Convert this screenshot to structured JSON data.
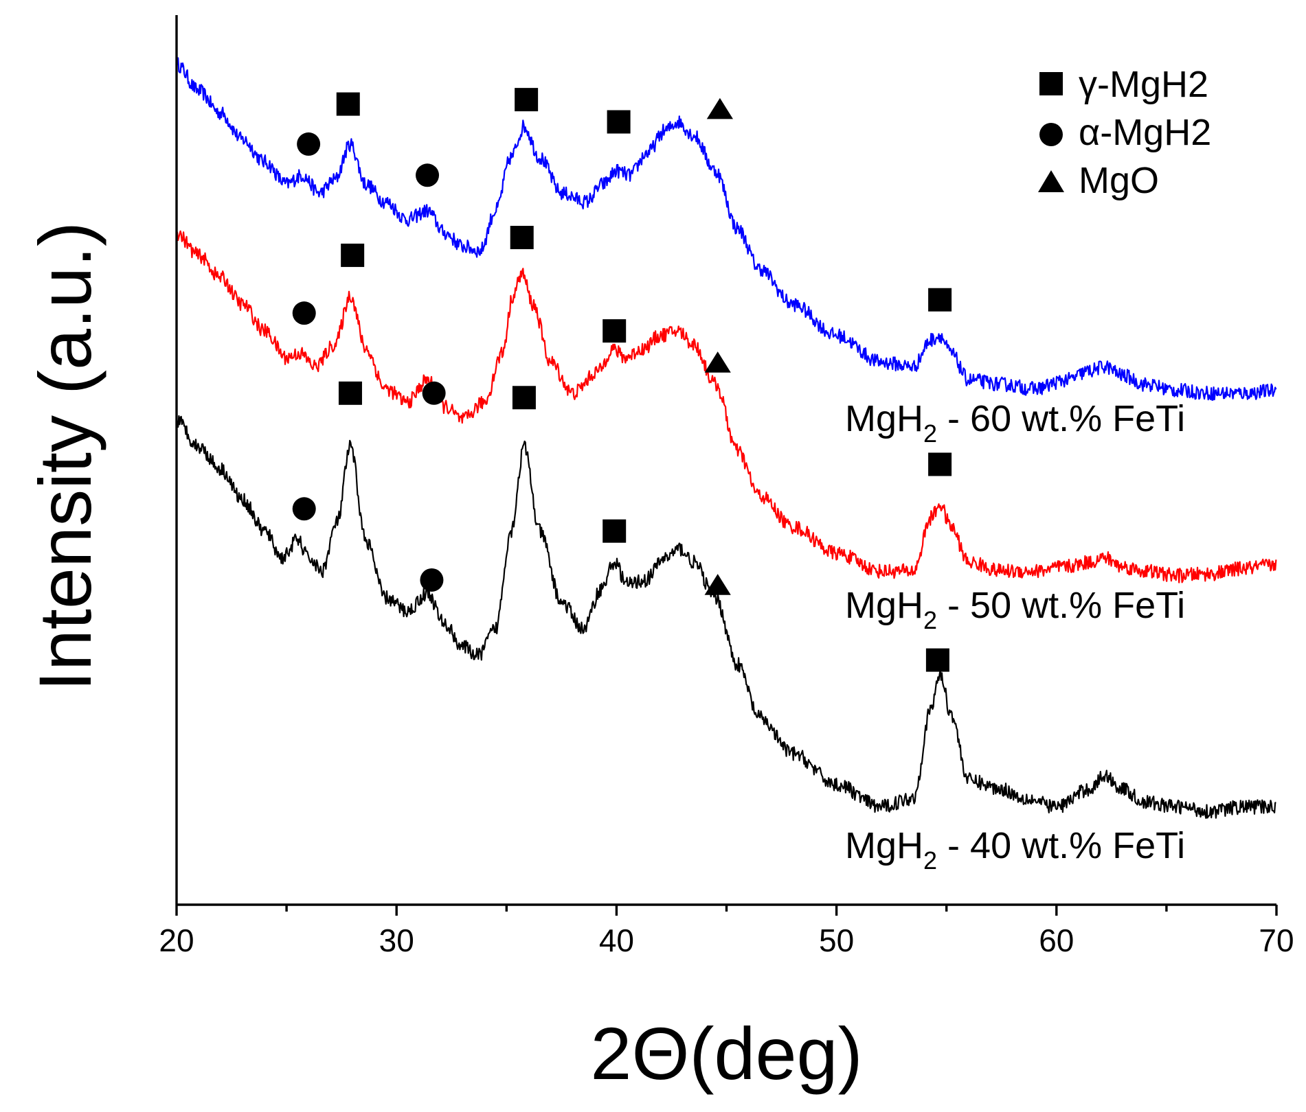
{
  "chart_data": {
    "type": "line",
    "title": "",
    "xlabel": "2Θ(deg)",
    "ylabel": "Intensity (a.u.)",
    "xlim": [
      20,
      70
    ],
    "x_ticks": [
      20,
      30,
      40,
      50,
      60,
      70
    ],
    "y_ticks": [],
    "grid": false,
    "legend_position": "top-right",
    "legend": [
      {
        "symbol": "square",
        "label": "γ-MgH2"
      },
      {
        "symbol": "circle",
        "label": "α-MgH2"
      },
      {
        "symbol": "triangle",
        "label": "MgO"
      }
    ],
    "series": [
      {
        "name": "MgH2 - 60 wt.% FeTi",
        "label_main": "MgH",
        "label_sub": "2",
        "label_rest": " - 60 wt.% FeTi",
        "color": "#0000ff",
        "x": [
          20,
          21,
          22,
          23,
          24,
          25,
          25.7,
          26.5,
          27.2,
          27.9,
          28.6,
          29.5,
          30.5,
          31.4,
          32.2,
          33,
          33.8,
          34.5,
          35.2,
          35.8,
          36.5,
          37.5,
          38.6,
          39.4,
          40,
          40.6,
          41.4,
          42.2,
          42.8,
          43.5,
          44.5,
          45.5,
          46.5,
          48,
          50,
          52,
          53.5,
          54.3,
          54.7,
          55.2,
          56,
          57.5,
          59,
          60.5,
          61.5,
          62.2,
          63,
          64,
          65.5,
          67,
          68.5,
          70
        ],
        "y": [
          0.945,
          0.915,
          0.89,
          0.86,
          0.835,
          0.81,
          0.82,
          0.8,
          0.815,
          0.855,
          0.81,
          0.79,
          0.77,
          0.78,
          0.755,
          0.74,
          0.735,
          0.78,
          0.84,
          0.875,
          0.84,
          0.8,
          0.79,
          0.81,
          0.825,
          0.82,
          0.845,
          0.87,
          0.88,
          0.865,
          0.825,
          0.76,
          0.715,
          0.675,
          0.64,
          0.61,
          0.605,
          0.635,
          0.64,
          0.62,
          0.59,
          0.585,
          0.58,
          0.59,
          0.6,
          0.605,
          0.595,
          0.585,
          0.578,
          0.575,
          0.575,
          0.578
        ]
      },
      {
        "name": "MgH2 - 50 wt.% FeTi",
        "label_main": "MgH",
        "label_sub": "2",
        "label_rest": " - 50 wt.% FeTi",
        "color": "#ff0000",
        "x": [
          20,
          21,
          22,
          23,
          24,
          25,
          25.6,
          26.3,
          27.2,
          27.9,
          28.6,
          29.5,
          30.5,
          31.4,
          32.2,
          33,
          34,
          34.8,
          35.3,
          35.7,
          36.2,
          37,
          38,
          39.2,
          39.8,
          40.4,
          41.2,
          42,
          42.8,
          43.5,
          44.5,
          45.5,
          46.5,
          48,
          50,
          52,
          53.5,
          54.3,
          54.7,
          55.2,
          56,
          57.5,
          59,
          60.5,
          61.5,
          62.2,
          63,
          64,
          65.5,
          67,
          68.5,
          70
        ],
        "y": [
          0.755,
          0.73,
          0.705,
          0.675,
          0.645,
          0.615,
          0.62,
          0.605,
          0.63,
          0.685,
          0.625,
          0.58,
          0.565,
          0.59,
          0.56,
          0.545,
          0.565,
          0.62,
          0.685,
          0.71,
          0.675,
          0.61,
          0.575,
          0.6,
          0.625,
          0.615,
          0.625,
          0.64,
          0.645,
          0.63,
          0.585,
          0.51,
          0.46,
          0.425,
          0.395,
          0.375,
          0.375,
          0.435,
          0.45,
          0.425,
          0.385,
          0.375,
          0.375,
          0.38,
          0.385,
          0.39,
          0.38,
          0.375,
          0.37,
          0.372,
          0.378,
          0.382
        ]
      },
      {
        "name": "MgH2 - 40 wt.% FeTi",
        "label_main": "MgH",
        "label_sub": "2",
        "label_rest": " - 40 wt.% FeTi",
        "color": "#000000",
        "x": [
          20,
          21,
          22,
          23,
          24,
          24.8,
          25.5,
          26,
          26.6,
          27.3,
          27.9,
          28.6,
          29.5,
          30.5,
          31.4,
          32.2,
          33,
          33.7,
          34.5,
          35.2,
          35.8,
          36.5,
          37.5,
          38.5,
          39.3,
          39.9,
          40.5,
          41.3,
          42.2,
          42.9,
          43.5,
          44.5,
          45.5,
          46.5,
          48,
          50,
          52,
          53.5,
          54.3,
          54.7,
          55.2,
          56,
          57.5,
          58.5,
          60,
          61.5,
          62.2,
          63,
          64,
          65.5,
          67,
          68.5,
          70
        ],
        "y": [
          0.545,
          0.515,
          0.49,
          0.455,
          0.42,
          0.39,
          0.41,
          0.39,
          0.375,
          0.43,
          0.515,
          0.41,
          0.345,
          0.33,
          0.35,
          0.315,
          0.29,
          0.28,
          0.31,
          0.42,
          0.515,
          0.42,
          0.34,
          0.31,
          0.355,
          0.385,
          0.36,
          0.365,
          0.39,
          0.4,
          0.385,
          0.345,
          0.27,
          0.21,
          0.17,
          0.135,
          0.11,
          0.12,
          0.22,
          0.26,
          0.215,
          0.14,
          0.13,
          0.12,
          0.11,
          0.13,
          0.145,
          0.13,
          0.115,
          0.11,
          0.105,
          0.11,
          0.11
        ]
      }
    ],
    "annotations": [
      {
        "symbol": "square",
        "x": 27.8,
        "y": 0.9
      },
      {
        "symbol": "circle",
        "x": 26.0,
        "y": 0.855
      },
      {
        "symbol": "circle",
        "x": 31.4,
        "y": 0.82
      },
      {
        "symbol": "square",
        "x": 35.9,
        "y": 0.905
      },
      {
        "symbol": "square",
        "x": 40.1,
        "y": 0.88
      },
      {
        "symbol": "triangle",
        "x": 44.7,
        "y": 0.895
      },
      {
        "symbol": "square",
        "x": 54.7,
        "y": 0.68
      },
      {
        "symbol": "square",
        "x": 28.0,
        "y": 0.73
      },
      {
        "symbol": "circle",
        "x": 25.8,
        "y": 0.665
      },
      {
        "symbol": "square",
        "x": 35.7,
        "y": 0.75
      },
      {
        "symbol": "square",
        "x": 39.9,
        "y": 0.645
      },
      {
        "symbol": "circle",
        "x": 31.7,
        "y": 0.575
      },
      {
        "symbol": "triangle",
        "x": 44.6,
        "y": 0.61
      },
      {
        "symbol": "square",
        "x": 54.7,
        "y": 0.495
      },
      {
        "symbol": "square",
        "x": 27.9,
        "y": 0.575
      },
      {
        "symbol": "square",
        "x": 35.8,
        "y": 0.57
      },
      {
        "symbol": "circle",
        "x": 25.8,
        "y": 0.445
      },
      {
        "symbol": "square",
        "x": 39.9,
        "y": 0.42
      },
      {
        "symbol": "circle",
        "x": 31.6,
        "y": 0.365
      },
      {
        "symbol": "triangle",
        "x": 44.6,
        "y": 0.36
      },
      {
        "symbol": "square",
        "x": 54.6,
        "y": 0.275
      }
    ]
  }
}
